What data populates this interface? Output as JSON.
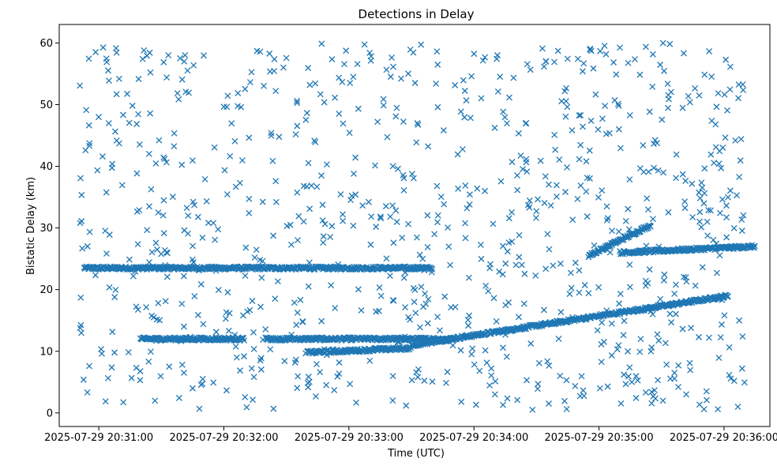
{
  "chart_data": {
    "type": "scatter",
    "title": "Detections in Delay",
    "xlabel": "Time (UTC)",
    "ylabel": "Bistatic Delay (km)",
    "x_is_time": true,
    "xlim": [
      "2025-07-29 20:30:41",
      "2025-07-29 20:36:22"
    ],
    "ylim": [
      -2.2,
      63
    ],
    "xticks": [
      "2025-07-29 20:31:00",
      "2025-07-29 20:32:00",
      "2025-07-29 20:33:00",
      "2025-07-29 20:34:00",
      "2025-07-29 20:35:00",
      "2025-07-29 20:36:00"
    ],
    "yticks": [
      "0",
      "10",
      "20",
      "30",
      "40",
      "50",
      "60"
    ],
    "marker": "x",
    "color": "#1f77b4",
    "grid": false,
    "tracks": [
      {
        "start": "2025-07-29 20:30:53",
        "end": "2025-07-29 20:33:40",
        "delay_start": 23.5,
        "delay_end": 23.5
      },
      {
        "start": "2025-07-29 20:32:20",
        "end": "2025-07-29 20:33:50",
        "delay_start": 12.0,
        "delay_end": 12.0
      },
      {
        "start": "2025-07-29 20:33:30",
        "end": "2025-07-29 20:36:02",
        "delay_start": 11.0,
        "delay_end": 19.0
      },
      {
        "start": "2025-07-29 20:34:55",
        "end": "2025-07-29 20:35:25",
        "delay_start": 25.5,
        "delay_end": 30.5
      },
      {
        "start": "2025-07-29 20:35:10",
        "end": "2025-07-29 20:36:15",
        "delay_start": 26.0,
        "delay_end": 27.0
      },
      {
        "start": "2025-07-29 20:31:20",
        "end": "2025-07-29 20:32:10",
        "delay_start": 12.0,
        "delay_end": 12.0
      },
      {
        "start": "2025-07-29 20:32:40",
        "end": "2025-07-29 20:33:30",
        "delay_start": 9.8,
        "delay_end": 10.5
      }
    ],
    "clutter_range": {
      "delay_min": 0.5,
      "delay_max": 60
    }
  }
}
